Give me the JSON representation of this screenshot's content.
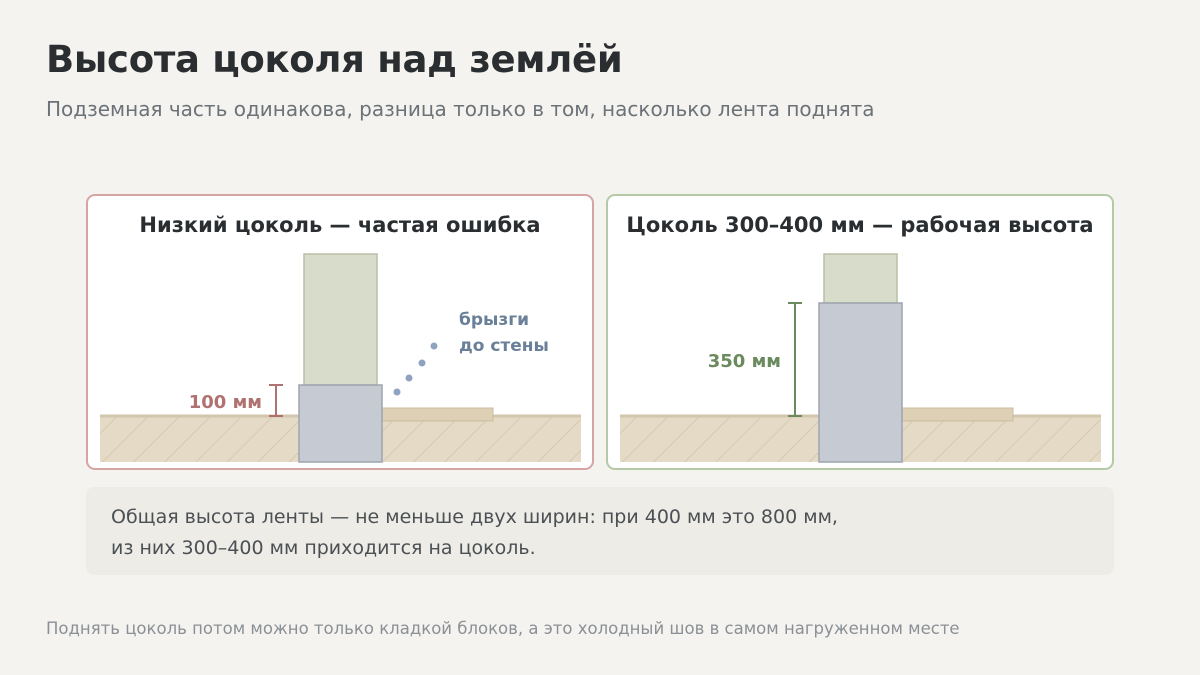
{
  "header": {
    "title": "Высота цоколя над землёй",
    "subtitle": "Подземная часть одинакова, разница только в том, насколько лента поднята"
  },
  "panels": [
    {
      "title": "Низкий цоколь — частая ошибка",
      "plinth_label": "100 мм",
      "plinth_mm": 100,
      "splash_label_line1": "брызги",
      "splash_label_line2": "до стены",
      "border_color": "#d4a5a3",
      "label_color": "#b07270"
    },
    {
      "title": "Цоколь 300–400 мм — рабочая высота",
      "plinth_label": "350 мм",
      "plinth_mm": 350,
      "border_color": "#b4c9a4",
      "label_color": "#6b8a5e"
    }
  ],
  "note": {
    "line1": "Общая высота ленты — не меньше двух ширин: при 400 мм это 800 мм,",
    "line2": "из них 300–400 мм приходится на цоколь."
  },
  "footer": "Поднять цоколь потом можно только кладкой блоков, а это холодный шов в самом нагруженном месте",
  "colors": {
    "background": "#f5f3ef",
    "wall": "#d8dccb",
    "foundation": "#c6cad3",
    "soil": "#e4dac6",
    "splash_dots": "#8fa3c0"
  }
}
